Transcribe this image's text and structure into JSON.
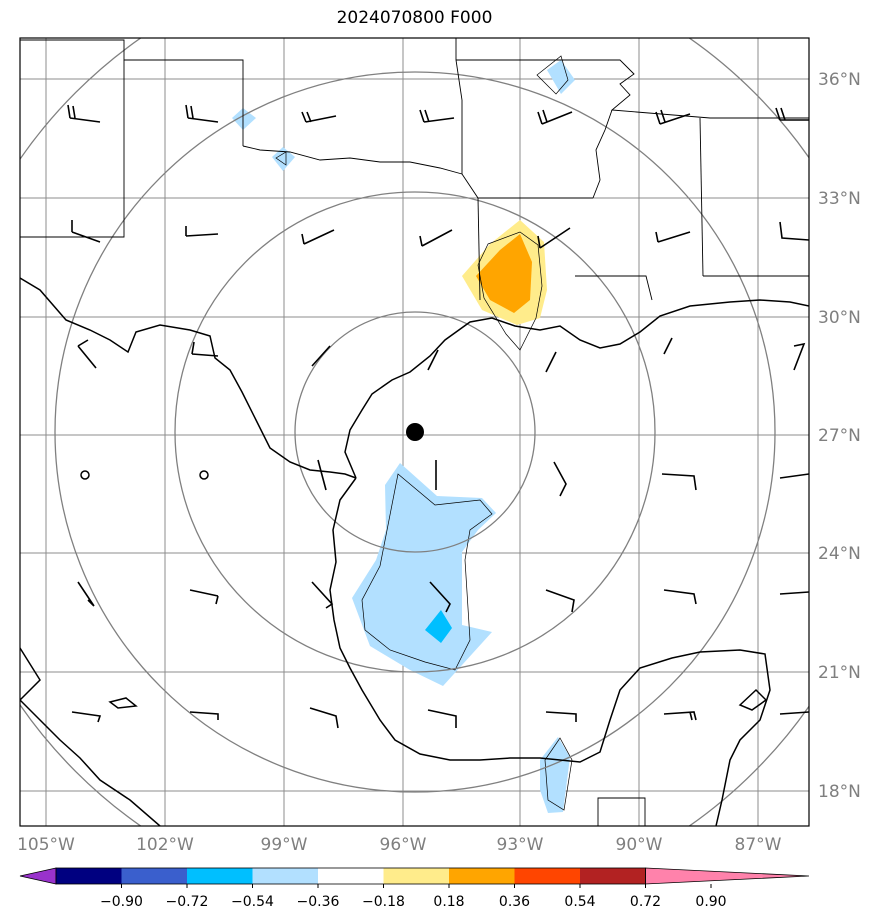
{
  "title": "2024070800 F000",
  "map": {
    "lon_range": [
      -106,
      -86.5
    ],
    "lat_range": [
      17,
      37
    ],
    "center": {
      "lon": -95.9,
      "lat": 27.1
    },
    "range_rings_deg": [
      3,
      6,
      9,
      12
    ],
    "lat_ticks": [
      {
        "value": 18,
        "label": "18°N"
      },
      {
        "value": 21,
        "label": "21°N"
      },
      {
        "value": 24,
        "label": "24°N"
      },
      {
        "value": 27,
        "label": "27°N"
      },
      {
        "value": 30,
        "label": "30°N"
      },
      {
        "value": 33,
        "label": "33°N"
      },
      {
        "value": 36,
        "label": "36°N"
      }
    ],
    "lon_ticks": [
      {
        "value": -105,
        "label": "105°W"
      },
      {
        "value": -102,
        "label": "102°W"
      },
      {
        "value": -99,
        "label": "99°W"
      },
      {
        "value": -96,
        "label": "96°W"
      },
      {
        "value": -93,
        "label": "93°W"
      },
      {
        "value": -90,
        "label": "90°W"
      },
      {
        "value": -87,
        "label": "87°W"
      }
    ]
  },
  "colorbar": {
    "ticks": [
      "−0.90",
      "−0.72",
      "−0.54",
      "−0.36",
      "−0.18",
      "0.18",
      "0.36",
      "0.54",
      "0.72",
      "0.90"
    ],
    "colors": [
      "#9932cc",
      "#000080",
      "#3a5fcd",
      "#00bfff",
      "#b2e0ff",
      "#ffffff",
      "#ffec8b",
      "#ffa500",
      "#ff4500",
      "#b22222",
      "#ff82ab"
    ]
  }
}
